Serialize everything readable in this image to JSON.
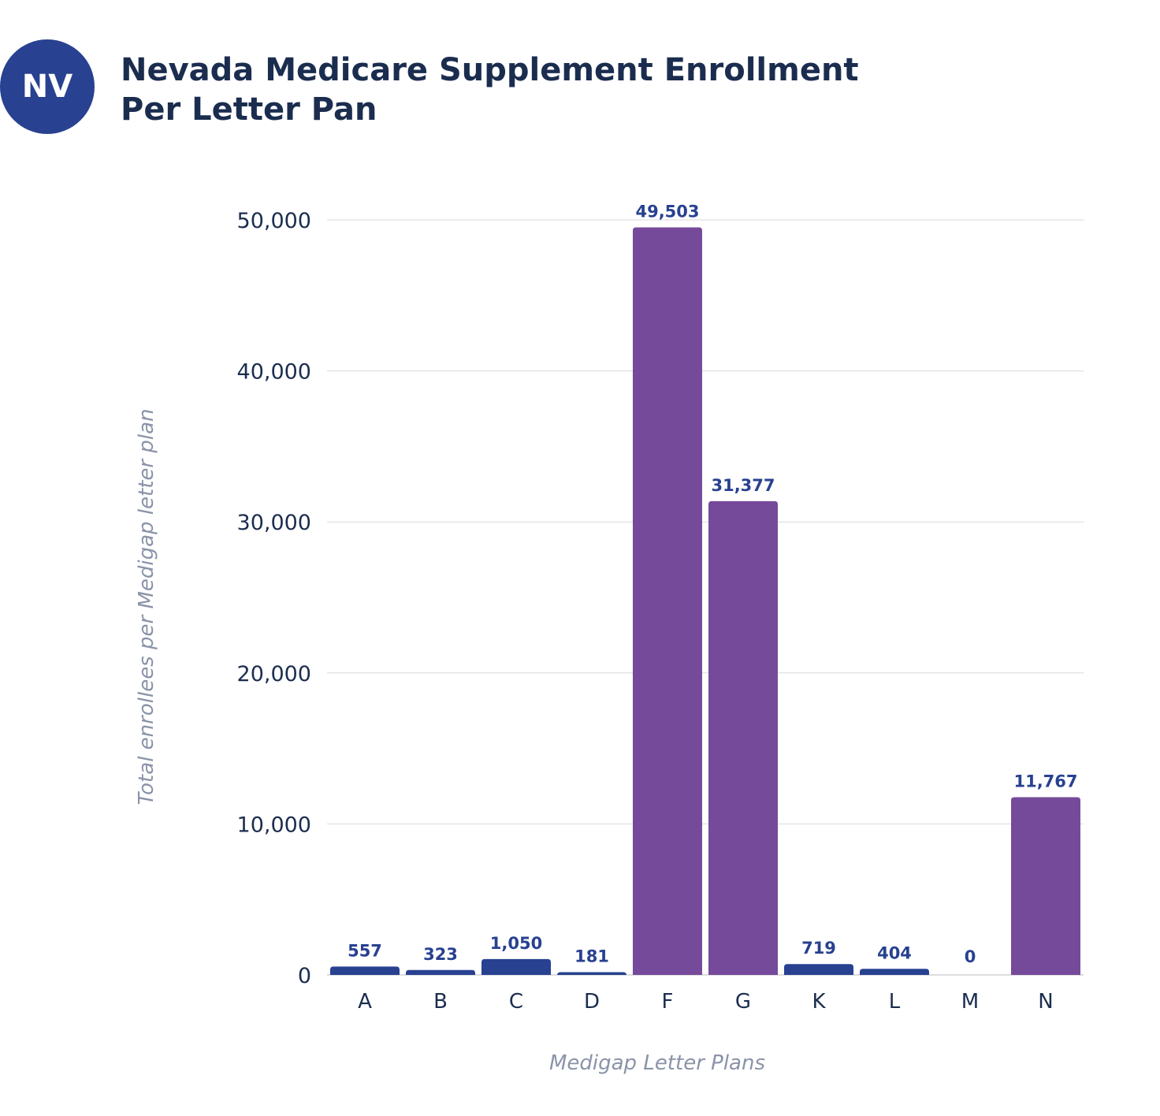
{
  "badge": "NV",
  "title_line1": "Nevada Medicare Supplement Enrollment",
  "title_line2": "Per Letter Pan",
  "chart_data": {
    "type": "bar",
    "title": "Nevada Medicare Supplement Enrollment Per Letter Pan",
    "xlabel": "Medigap Letter Plans",
    "ylabel": "Total enrollees per Medigap letter plan",
    "categories": [
      "A",
      "B",
      "C",
      "D",
      "F",
      "G",
      "K",
      "L",
      "M",
      "N"
    ],
    "values": [
      557,
      323,
      1050,
      181,
      49503,
      31377,
      719,
      404,
      0,
      11767
    ],
    "value_labels": [
      "557",
      "323",
      "1,050",
      "181",
      "49,503",
      "31,377",
      "719",
      "404",
      "0",
      "11,767"
    ],
    "bar_colors": [
      "#284190",
      "#284190",
      "#284190",
      "#284190",
      "#764a9a",
      "#764a9a",
      "#284190",
      "#284190",
      "#284190",
      "#764a9a"
    ],
    "ylim": [
      0,
      50000
    ],
    "yticks": [
      0,
      10000,
      20000,
      30000,
      40000,
      50000
    ],
    "ytick_labels": [
      "0",
      "10,000",
      "20,000",
      "30,000",
      "40,000",
      "50,000"
    ],
    "grid": true,
    "legend": "none"
  }
}
